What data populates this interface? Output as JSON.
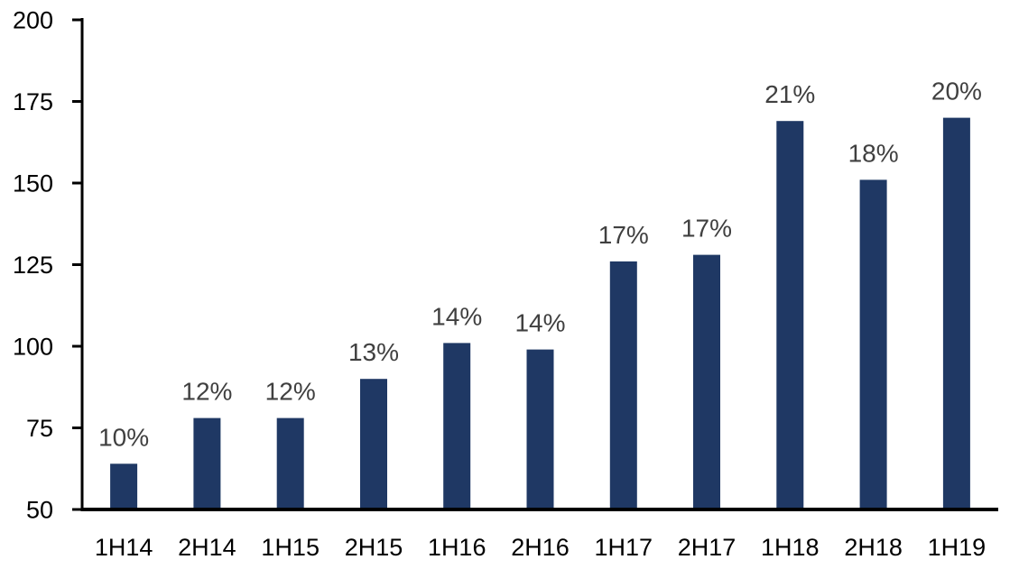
{
  "chart_data": {
    "type": "bar",
    "title": "",
    "categories": [
      "1H14",
      "2H14",
      "1H15",
      "2H15",
      "1H16",
      "2H16",
      "1H17",
      "2H17",
      "1H18",
      "2H18",
      "1H19"
    ],
    "values": [
      64,
      78,
      78,
      90,
      101,
      99,
      126,
      128,
      169,
      151,
      170
    ],
    "data_labels": [
      "10%",
      "12%",
      "12%",
      "13%",
      "14%",
      "14%",
      "17%",
      "17%",
      "21%",
      "18%",
      "20%"
    ],
    "y_axis": {
      "min": 50,
      "max": 200,
      "step": 25,
      "tick_labels": [
        "200",
        "175",
        "150",
        "125",
        "100",
        "75",
        "50"
      ],
      "tick_values": [
        200,
        175,
        150,
        125,
        100,
        75,
        50
      ]
    },
    "x_axis": {
      "tick_labels": [
        "1H14",
        "2H14",
        "1H15",
        "2H15",
        "1H16",
        "2H16",
        "1H17",
        "2H17",
        "1H18",
        "2H18",
        "1H19"
      ]
    },
    "legend": "none",
    "grid": "off",
    "colors": {
      "bar": "#1F3864",
      "data_label": "#404040",
      "axis": "#000000",
      "tick_label": "#000000",
      "background": "#FFFFFF"
    }
  }
}
